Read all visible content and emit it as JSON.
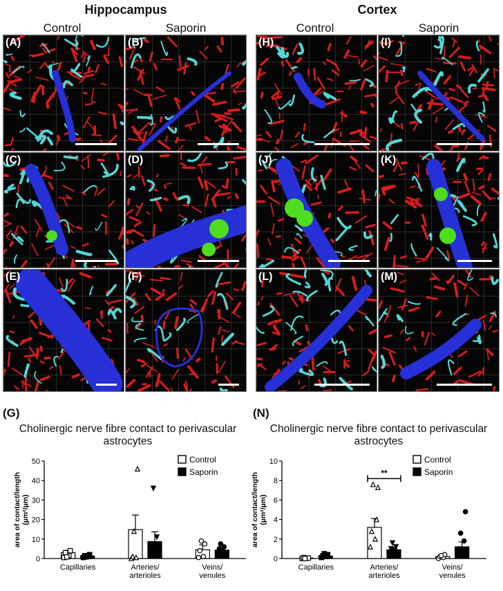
{
  "regions": {
    "hippocampus": "Hippocampus",
    "cortex": "Cortex"
  },
  "columns": {
    "control": "Control",
    "saporin": "Saporin"
  },
  "panels": [
    {
      "label": "(A)"
    },
    {
      "label": "(B)"
    },
    {
      "label": "(C)"
    },
    {
      "label": "(D)"
    },
    {
      "label": "(E)"
    },
    {
      "label": "(F)"
    },
    {
      "label": "(H)"
    },
    {
      "label": "(I)"
    },
    {
      "label": "(J)"
    },
    {
      "label": "(K)"
    },
    {
      "label": "(L)"
    },
    {
      "label": "(M)"
    }
  ],
  "colors": {
    "nerve_fibres": "#d91c1c",
    "astrocytes": "#52d6d6",
    "vessel": "#2630d6",
    "contact": "#4cdd1e"
  },
  "chart_data": [
    {
      "letter": "(G)",
      "type": "bar",
      "title": "Cholinergic nerve fibre contact to perivascular astrocytes",
      "ylabel": "area of contact/length (µm²/µm)",
      "ylim": [
        0,
        50
      ],
      "yticks": [
        "0",
        "10",
        "20",
        "30",
        "40",
        "50"
      ],
      "categories": [
        "Capillaries",
        "Arteries/ arterioles",
        "Veins/ venules"
      ],
      "legend": {
        "placement": "top-right",
        "items": [
          "Control",
          "Saporin"
        ]
      },
      "series": [
        {
          "name": "Control",
          "fill": "#ffffff",
          "values": [
            3.0,
            14.8,
            4.5
          ],
          "errors": [
            1.2,
            7.5,
            2.5
          ],
          "points": [
            [
              0.5,
              1.5,
              3,
              4,
              0.8
            ],
            [
              0,
              0.5,
              1,
              46,
              14
            ],
            [
              0.5,
              1,
              4,
              7.5,
              9
            ]
          ]
        },
        {
          "name": "Saporin",
          "fill": "#000000",
          "values": [
            1.3,
            8.7,
            4.3
          ],
          "errors": [
            0.5,
            5.0,
            1.2
          ],
          "points": [
            [
              0.5,
              1,
              1.5,
              2,
              0.8
            ],
            [
              3,
              5,
              7,
              11,
              36
            ],
            [
              2,
              4,
              5,
              6,
              7.5
            ]
          ]
        }
      ],
      "annotation": ""
    },
    {
      "letter": "(N)",
      "type": "bar",
      "title": "Cholinergic nerve fibre contact to perivascular astrocytes",
      "ylabel": "area of contact/length (µm²/µm)",
      "ylim": [
        0,
        10
      ],
      "yticks": [
        "0",
        "2",
        "4",
        "6",
        "8",
        "10"
      ],
      "categories": [
        "Capillaries",
        "Arteries/ arterioles",
        "Veins/ venules"
      ],
      "legend": {
        "placement": "top-right",
        "items": [
          "Control",
          "Saporin"
        ]
      },
      "series": [
        {
          "name": "Control",
          "fill": "#ffffff",
          "values": [
            0.05,
            3.2,
            0.2
          ],
          "errors": [
            0.05,
            0.9,
            0.1
          ],
          "points": [
            [
              0,
              0.05,
              0.1,
              0.05,
              0
            ],
            [
              1.2,
              2.0,
              2.8,
              4.0,
              7.6,
              7.3
            ],
            [
              0,
              0.1,
              0.2,
              0.4,
              0.3
            ]
          ]
        },
        {
          "name": "Saporin",
          "fill": "#000000",
          "values": [
            0.25,
            0.9,
            1.2
          ],
          "errors": [
            0.1,
            0.2,
            0.5
          ],
          "points": [
            [
              0.1,
              0.2,
              0.3,
              0.4,
              0.5
            ],
            [
              0.5,
              0.8,
              1.0,
              1.2,
              1.6
            ],
            [
              0.3,
              0.6,
              1.0,
              1.8,
              2.6,
              4.8
            ]
          ]
        }
      ],
      "annotation": "**"
    }
  ]
}
